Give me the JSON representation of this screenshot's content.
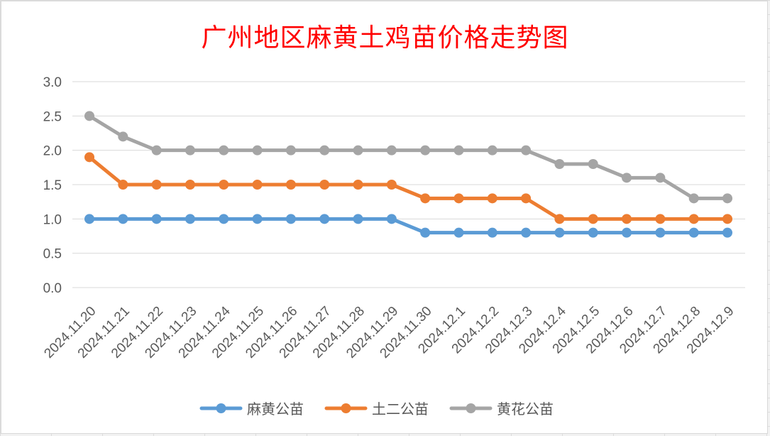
{
  "chart_data": {
    "type": "line",
    "title": "广州地区麻黄土鸡苗价格走势图",
    "categories": [
      "2024.11.20",
      "2024.11.21",
      "2024.11.22",
      "2024.11.23",
      "2024.11.24",
      "2024.11.25",
      "2024.11.26",
      "2024.11.27",
      "2024.11.28",
      "2024.11.29",
      "2024.11.30",
      "2024.12.1",
      "2024.12.2",
      "2024.12.3",
      "2024.12.4",
      "2024.12.5",
      "2024.12.6",
      "2024.12.7",
      "2024.12.8",
      "2024.12.9"
    ],
    "ylim": [
      0,
      3
    ],
    "yticks": [
      "0.0",
      "0.5",
      "1.0",
      "1.5",
      "2.0",
      "2.5",
      "3.0"
    ],
    "grid": true,
    "legend_position": "bottom",
    "series": [
      {
        "name": "麻黄公苗",
        "color": "#5b9bd5",
        "values": [
          1.0,
          1.0,
          1.0,
          1.0,
          1.0,
          1.0,
          1.0,
          1.0,
          1.0,
          1.0,
          0.8,
          0.8,
          0.8,
          0.8,
          0.8,
          0.8,
          0.8,
          0.8,
          0.8,
          0.8
        ]
      },
      {
        "name": "土二公苗",
        "color": "#ed7d31",
        "values": [
          1.9,
          1.5,
          1.5,
          1.5,
          1.5,
          1.5,
          1.5,
          1.5,
          1.5,
          1.5,
          1.3,
          1.3,
          1.3,
          1.3,
          1.0,
          1.0,
          1.0,
          1.0,
          1.0,
          1.0
        ]
      },
      {
        "name": "黄花公苗",
        "color": "#a5a5a5",
        "values": [
          2.5,
          2.2,
          2.0,
          2.0,
          2.0,
          2.0,
          2.0,
          2.0,
          2.0,
          2.0,
          2.0,
          2.0,
          2.0,
          2.0,
          1.8,
          1.8,
          1.6,
          1.6,
          1.3,
          1.3
        ]
      }
    ]
  }
}
